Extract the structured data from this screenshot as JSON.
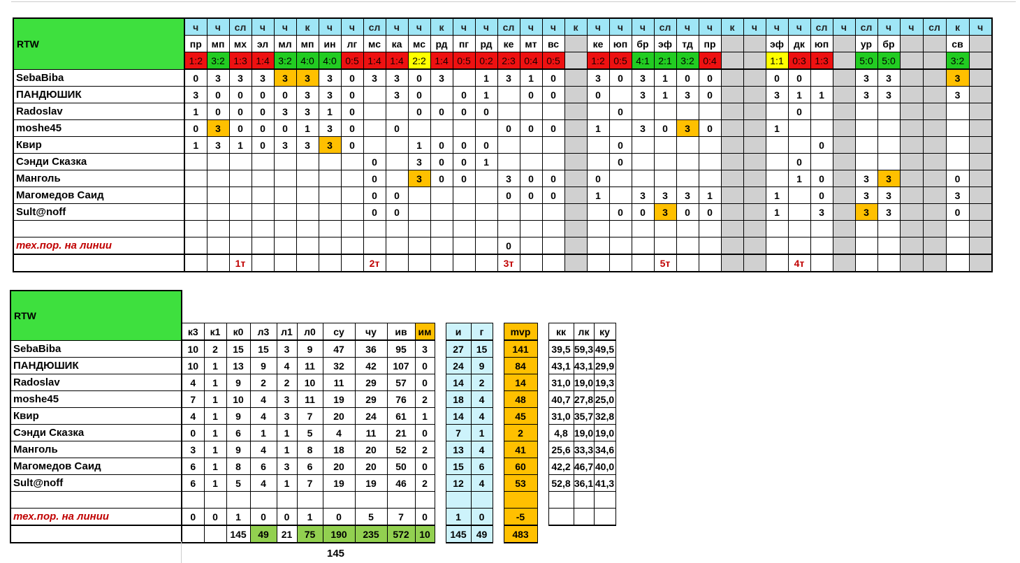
{
  "app_title": "RTW",
  "top": {
    "row1": [
      "ч",
      "ч",
      "сл",
      "ч",
      "ч",
      "к",
      "ч",
      "ч",
      "сл",
      "ч",
      "ч",
      "к",
      "ч",
      "ч",
      "сл",
      "ч",
      "ч",
      "к",
      "ч",
      "ч",
      "ч",
      "сл",
      "ч",
      "ч",
      "к",
      "ч",
      "ч",
      "ч",
      "сл",
      "ч",
      "сл",
      "ч",
      "ч",
      "сл",
      "к",
      "ч",
      "сл"
    ],
    "row2": [
      "пр",
      "мп",
      "мх",
      "эл",
      "мл",
      "мп",
      "ин",
      "лг",
      "мс",
      "ка",
      "мс",
      "рд",
      "пг",
      "рд",
      "ке",
      "мт",
      "вс",
      "",
      "ке",
      "юп",
      "бр",
      "эф",
      "тд",
      "пр",
      "",
      "",
      "эф",
      "дк",
      "юп",
      "",
      "ур",
      "бр",
      "",
      "",
      "св",
      ""
    ],
    "row3": [
      "1:2",
      "3:2",
      "1:3",
      "1:4",
      "3:2",
      "4:0",
      "4:0",
      "0:5",
      "1:4",
      "1:4",
      "2:2",
      "1:4",
      "0:5",
      "0:2",
      "2:3",
      "0:4",
      "0:5",
      "",
      "1:2",
      "0:5",
      "4:1",
      "2:1",
      "3:2",
      "0:4",
      "",
      "",
      "1:1",
      "0:3",
      "1:3",
      "",
      "5:0",
      "5:0",
      "",
      "",
      "3:2",
      ""
    ],
    "row3_colors": [
      "r",
      "g",
      "r",
      "r",
      "g",
      "g",
      "g",
      "r",
      "r",
      "r",
      "y",
      "r",
      "r",
      "r",
      "r",
      "r",
      "r",
      "x",
      "r",
      "r",
      "g",
      "g",
      "g",
      "r",
      "x",
      "x",
      "y",
      "r",
      "r",
      "x",
      "g",
      "g",
      "x",
      "x",
      "g",
      "x"
    ],
    "players": [
      {
        "name": "SebaBiba",
        "cells": [
          "0",
          "3",
          "3",
          "3",
          "3",
          "3",
          "3",
          "0",
          "3",
          "3",
          "0",
          "3",
          "",
          "1",
          "3",
          "1",
          "0",
          "",
          "3",
          "0",
          "3",
          "1",
          "0",
          "0",
          "",
          "",
          "0",
          "0",
          "",
          "",
          "3",
          "3",
          "",
          "",
          "3",
          ""
        ]
      },
      {
        "name": "ПАНДЮШИК",
        "cells": [
          "3",
          "0",
          "0",
          "0",
          "0",
          "3",
          "3",
          "0",
          "",
          "3",
          "0",
          "",
          "0",
          "1",
          "",
          "0",
          "0",
          "",
          "0",
          "",
          "3",
          "1",
          "3",
          "0",
          "",
          "",
          "3",
          "1",
          "1",
          "",
          "3",
          "3",
          "",
          "",
          "3",
          ""
        ]
      },
      {
        "name": "Radoslav",
        "cells": [
          "1",
          "0",
          "0",
          "0",
          "3",
          "3",
          "1",
          "0",
          "",
          "",
          "0",
          "0",
          "0",
          "0",
          "",
          "",
          "",
          "",
          "",
          "0",
          "",
          "",
          "",
          "",
          "",
          "",
          "",
          "0",
          "",
          "",
          "",
          "",
          "",
          "",
          "",
          ""
        ]
      },
      {
        "name": "moshe45",
        "cells": [
          "0",
          "3",
          "0",
          "0",
          "0",
          "1",
          "3",
          "0",
          "",
          "0",
          "",
          "",
          "",
          "",
          "0",
          "0",
          "0",
          "",
          "1",
          "",
          "3",
          "0",
          "3",
          "0",
          "",
          "",
          "1",
          "",
          "",
          "",
          "",
          "",
          "",
          "",
          "",
          ""
        ]
      },
      {
        "name": "Квир",
        "cells": [
          "1",
          "3",
          "1",
          "0",
          "3",
          "3",
          "3",
          "0",
          "",
          "",
          "1",
          "0",
          "0",
          "0",
          "",
          "",
          "",
          "",
          "",
          "0",
          "",
          "",
          "",
          "",
          "",
          "",
          "",
          "",
          "0",
          "",
          "",
          "",
          "",
          "",
          "",
          ""
        ]
      },
      {
        "name": "Сэнди Сказка",
        "cells": [
          "",
          "",
          "",
          "",
          "",
          "",
          "",
          "",
          "0",
          "",
          "3",
          "0",
          "0",
          "1",
          "",
          "",
          "",
          "",
          "",
          "0",
          "",
          "",
          "",
          "",
          "",
          "",
          "",
          "0",
          "",
          "",
          "",
          "",
          "",
          "",
          "",
          ""
        ]
      },
      {
        "name": "Манголь",
        "cells": [
          "",
          "",
          "",
          "",
          "",
          "",
          "",
          "",
          "0",
          "",
          "3",
          "0",
          "0",
          "",
          "3",
          "0",
          "0",
          "",
          "0",
          "",
          "",
          "",
          "",
          "",
          "",
          "",
          "",
          "1",
          "0",
          "",
          "3",
          "3",
          "",
          "",
          "0",
          ""
        ]
      },
      {
        "name": "Магомедов Саид",
        "cells": [
          "",
          "",
          "",
          "",
          "",
          "",
          "",
          "",
          "0",
          "0",
          "",
          "",
          "",
          "",
          "0",
          "0",
          "0",
          "",
          "1",
          "",
          "3",
          "3",
          "3",
          "1",
          "",
          "",
          "1",
          "",
          "0",
          "",
          "3",
          "3",
          "",
          "",
          "3",
          ""
        ]
      },
      {
        "name": "Sult@noff",
        "cells": [
          "",
          "",
          "",
          "",
          "",
          "",
          "",
          "",
          "0",
          "0",
          "",
          "",
          "",
          "",
          "",
          "",
          "",
          "",
          "",
          "0",
          "0",
          "3",
          "0",
          "0",
          "",
          "",
          "1",
          "",
          "3",
          "",
          "3",
          "3",
          "",
          "",
          "0",
          ""
        ]
      }
    ],
    "tech_label": "тех.пор. на линии",
    "tech_cells": [
      "",
      "",
      "",
      "",
      "",
      "",
      "",
      "",
      "",
      "",
      "",
      "",
      "",
      "",
      "0",
      "",
      "",
      "",
      "",
      "",
      "",
      "",
      "",
      "",
      "",
      "",
      "",
      "",
      "",
      "",
      "",
      "",
      "",
      "",
      "",
      ""
    ],
    "tour_cells": [
      "",
      "",
      "1т",
      "",
      "",
      "",
      "",
      "",
      "2т",
      "",
      "",
      "",
      "",
      "",
      "3т",
      "",
      "",
      "",
      "",
      "",
      "",
      "5т",
      "",
      "",
      "",
      "",
      "",
      "4т",
      "",
      "",
      "",
      "",
      "",
      "",
      "",
      ""
    ]
  },
  "bottom": {
    "headers": [
      "к3",
      "к1",
      "к0",
      "л3",
      "л1",
      "л0",
      "су",
      "чу",
      "ив",
      "им",
      "и",
      "г",
      "mvp",
      "кк",
      "лк",
      "ку"
    ],
    "rows": [
      {
        "name": "SebaBiba",
        "v": [
          "10",
          "2",
          "15",
          "15",
          "3",
          "9",
          "47",
          "36",
          "95",
          "3",
          "27",
          "15",
          "141",
          "39,5",
          "59,3",
          "49,5"
        ]
      },
      {
        "name": "ПАНДЮШИК",
        "v": [
          "10",
          "1",
          "13",
          "9",
          "4",
          "11",
          "32",
          "42",
          "107",
          "0",
          "24",
          "9",
          "84",
          "43,1",
          "43,1",
          "29,9"
        ]
      },
      {
        "name": "Radoslav",
        "v": [
          "4",
          "1",
          "9",
          "2",
          "2",
          "10",
          "11",
          "29",
          "57",
          "0",
          "14",
          "2",
          "14",
          "31,0",
          "19,0",
          "19,3"
        ]
      },
      {
        "name": "moshe45",
        "v": [
          "7",
          "1",
          "10",
          "4",
          "3",
          "11",
          "19",
          "29",
          "76",
          "2",
          "18",
          "4",
          "48",
          "40,7",
          "27,8",
          "25,0"
        ]
      },
      {
        "name": "Квир",
        "v": [
          "4",
          "1",
          "9",
          "4",
          "3",
          "7",
          "20",
          "24",
          "61",
          "1",
          "14",
          "4",
          "45",
          "31,0",
          "35,7",
          "32,8"
        ]
      },
      {
        "name": "Сэнди Сказка",
        "v": [
          "0",
          "1",
          "6",
          "1",
          "1",
          "5",
          "4",
          "11",
          "21",
          "0",
          "7",
          "1",
          "2",
          "4,8",
          "19,0",
          "19,0"
        ]
      },
      {
        "name": "Манголь",
        "v": [
          "3",
          "1",
          "9",
          "4",
          "1",
          "8",
          "18",
          "20",
          "52",
          "2",
          "13",
          "4",
          "41",
          "25,6",
          "33,3",
          "34,6"
        ]
      },
      {
        "name": "Магомедов Саид",
        "v": [
          "6",
          "1",
          "8",
          "6",
          "3",
          "6",
          "20",
          "20",
          "50",
          "0",
          "15",
          "6",
          "60",
          "42,2",
          "46,7",
          "40,0"
        ]
      },
      {
        "name": "Sult@noff",
        "v": [
          "6",
          "1",
          "5",
          "4",
          "1",
          "7",
          "19",
          "19",
          "46",
          "2",
          "12",
          "4",
          "53",
          "52,8",
          "36,1",
          "41,3"
        ]
      }
    ],
    "tech_label": "тех.пор. на линии",
    "tech_values": [
      "0",
      "0",
      "1",
      "0",
      "0",
      "1",
      "0",
      "5",
      "7",
      "0",
      "1",
      "0",
      "-5",
      "",
      "",
      ""
    ],
    "total_values": [
      "",
      "",
      "145",
      "49",
      "21",
      "75",
      "190",
      "235",
      "572",
      "10",
      "145",
      "49",
      "483",
      "",
      "",
      ""
    ],
    "footer_number": "145"
  },
  "colors": {
    "header_blue": "#9fe6f6",
    "green": "#3ee03e",
    "red": "#ee1111",
    "orange": "#ffc000",
    "yellow": "#ffff00"
  }
}
